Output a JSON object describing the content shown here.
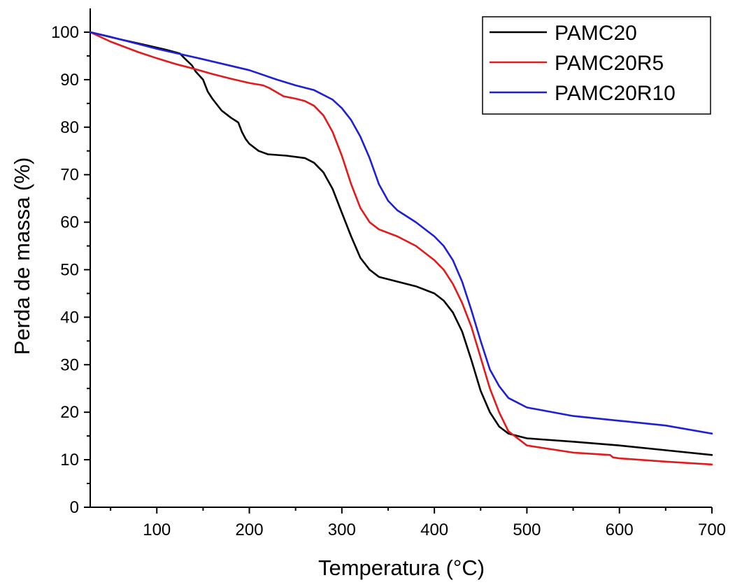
{
  "chart_data": {
    "type": "line",
    "title": "",
    "xlabel": "Temperatura (°C)",
    "ylabel": "Perda de massa (%)",
    "xlim": [
      28,
      700
    ],
    "ylim": [
      0,
      105
    ],
    "xticks": [
      100,
      200,
      300,
      400,
      500,
      600,
      700
    ],
    "yticks": [
      0,
      10,
      20,
      30,
      40,
      50,
      60,
      70,
      80,
      90,
      100
    ],
    "grid": false,
    "legend_position": "top-right",
    "series": [
      {
        "name": "PAMC20",
        "color": "#000000",
        "x": [
          28,
          60,
          90,
          110,
          125,
          130,
          138,
          142,
          150,
          155,
          160,
          170,
          180,
          188,
          192,
          196,
          200,
          210,
          220,
          240,
          260,
          270,
          280,
          290,
          300,
          310,
          320,
          330,
          340,
          360,
          380,
          400,
          410,
          420,
          430,
          440,
          450,
          460,
          470,
          480,
          500,
          550,
          600,
          650,
          700
        ],
        "y": [
          100,
          98.5,
          97.2,
          96.3,
          95.5,
          94.5,
          93,
          91.7,
          90,
          87.5,
          86,
          83.5,
          82,
          81,
          79,
          77.5,
          76.5,
          75,
          74.3,
          74,
          73.5,
          72.5,
          70.5,
          67,
          62,
          57,
          52.5,
          50,
          48.5,
          47.5,
          46.5,
          45,
          43.5,
          41,
          37,
          31,
          24.5,
          20,
          17,
          15.5,
          14.5,
          13.8,
          13,
          12,
          11
        ]
      },
      {
        "name": "PAMC20R5",
        "color": "#e31a1c",
        "x": [
          28,
          50,
          80,
          100,
          120,
          140,
          160,
          180,
          200,
          215,
          222,
          230,
          237,
          250,
          260,
          270,
          280,
          290,
          300,
          310,
          320,
          330,
          340,
          360,
          380,
          400,
          410,
          420,
          430,
          440,
          450,
          460,
          470,
          480,
          500,
          550,
          590,
          593,
          600,
          650,
          700
        ],
        "y": [
          100,
          98,
          95.8,
          94.5,
          93.3,
          92.3,
          91.2,
          90.2,
          89.3,
          88.8,
          88.2,
          87.3,
          86.5,
          86,
          85.5,
          84.5,
          82.5,
          79,
          74,
          68,
          63,
          60,
          58.5,
          57,
          55,
          52,
          50,
          47,
          43,
          38,
          31.5,
          25,
          20,
          16,
          13,
          11.5,
          11,
          10.5,
          10.3,
          9.6,
          9
        ]
      },
      {
        "name": "PAMC20R10",
        "color": "#1f1fd6",
        "x": [
          28,
          50,
          80,
          100,
          150,
          200,
          230,
          250,
          270,
          290,
          300,
          310,
          320,
          330,
          340,
          350,
          360,
          380,
          400,
          410,
          420,
          430,
          440,
          450,
          460,
          470,
          480,
          500,
          550,
          600,
          650,
          700
        ],
        "y": [
          100,
          99,
          97.5,
          96.5,
          94.3,
          92,
          90,
          88.8,
          87.8,
          85.8,
          84,
          81.5,
          78,
          73.5,
          68,
          64.5,
          62.5,
          60,
          57,
          55,
          52,
          47.5,
          41.5,
          35,
          29,
          25.5,
          23,
          21,
          19.2,
          18.2,
          17.2,
          15.5
        ]
      }
    ]
  }
}
